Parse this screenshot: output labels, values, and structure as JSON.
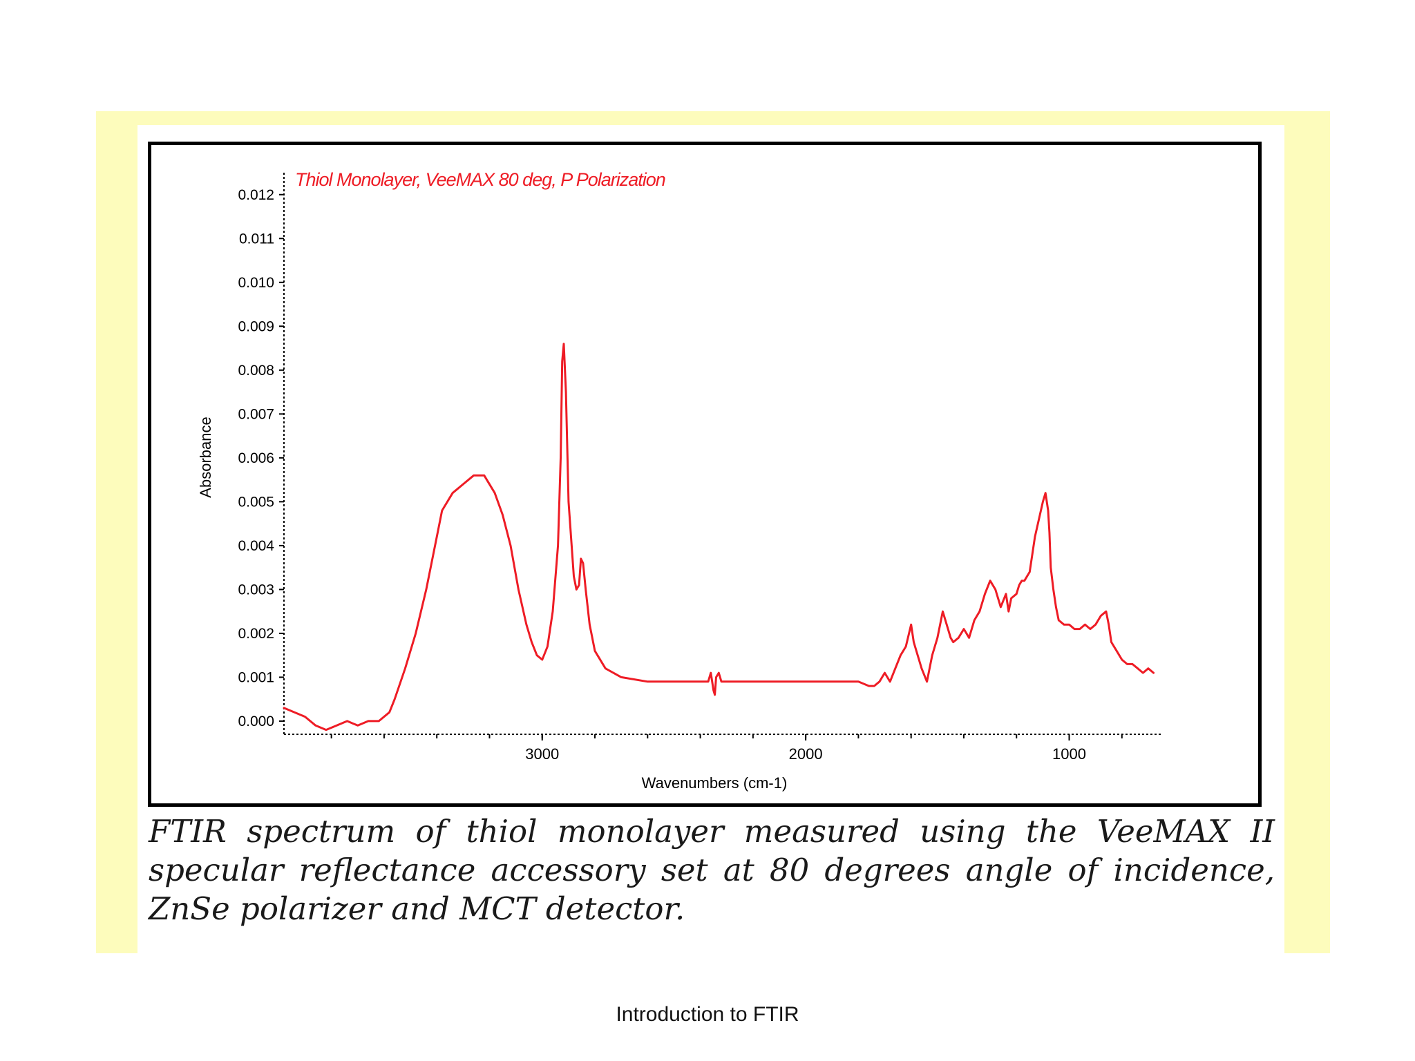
{
  "caption": "FTIR spectrum of thiol monolayer measured using the VeeMAX II specular reflectance accessory set at 80 degrees angle of incidence, ZnSe polarizer and MCT detector.",
  "footer": "Introduction to FTIR",
  "colors": {
    "frame_background": "#fdfcbc",
    "series_line": "#ee1c25",
    "chart_border": "#000000"
  },
  "chart_data": {
    "type": "line",
    "title": "Thiol Monolayer,  VeeMAX 80 deg, P Polarization",
    "xlabel": "Wavenumbers (cm-1)",
    "ylabel": "Absorbance",
    "xlim": [
      3980,
      650
    ],
    "ylim": [
      -0.0003,
      0.0125
    ],
    "x_reversed": true,
    "grid": false,
    "xticks": [
      3000,
      2000,
      1000
    ],
    "xtick_labels": [
      "3000",
      "2000",
      "1000"
    ],
    "yticks": [
      0.0,
      0.001,
      0.002,
      0.003,
      0.004,
      0.005,
      0.006,
      0.007,
      0.008,
      0.009,
      0.01,
      0.011,
      0.012
    ],
    "ytick_labels": [
      "0.000",
      "0.001",
      "0.002",
      "0.003",
      "0.004",
      "0.005",
      "0.006",
      "0.007",
      "0.008",
      "0.009",
      "0.010",
      "0.011",
      "0.012"
    ],
    "series": [
      {
        "x": [
          3980,
          3900,
          3860,
          3820,
          3780,
          3740,
          3700,
          3660,
          3620,
          3580,
          3560,
          3520,
          3480,
          3440,
          3400,
          3380,
          3340,
          3300,
          3260,
          3240,
          3220,
          3180,
          3150,
          3120,
          3090,
          3060,
          3040,
          3020,
          3000,
          2980,
          2960,
          2940,
          2930,
          2924,
          2918,
          2910,
          2900,
          2880,
          2870,
          2860,
          2853,
          2845,
          2835,
          2820,
          2800,
          2760,
          2700,
          2600,
          2500,
          2400,
          2370,
          2360,
          2350,
          2345,
          2340,
          2330,
          2320,
          2300,
          2200,
          2100,
          2000,
          1900,
          1800,
          1760,
          1740,
          1720,
          1700,
          1680,
          1660,
          1640,
          1620,
          1600,
          1590,
          1580,
          1560,
          1540,
          1520,
          1500,
          1480,
          1460,
          1450,
          1440,
          1420,
          1400,
          1380,
          1360,
          1340,
          1320,
          1300,
          1280,
          1260,
          1240,
          1230,
          1220,
          1200,
          1190,
          1180,
          1170,
          1150,
          1130,
          1100,
          1090,
          1080,
          1075,
          1070,
          1060,
          1050,
          1040,
          1020,
          1000,
          980,
          960,
          940,
          920,
          900,
          880,
          860,
          850,
          840,
          820,
          800,
          780,
          760,
          740,
          720,
          700,
          680
        ],
        "y": [
          0.0003,
          0.0001,
          -0.0001,
          -0.0002,
          -0.0001,
          0.0,
          -0.0001,
          0.0,
          0.0,
          0.0002,
          0.0005,
          0.0012,
          0.002,
          0.003,
          0.0042,
          0.0048,
          0.0052,
          0.0054,
          0.0056,
          0.0056,
          0.0056,
          0.0052,
          0.0047,
          0.004,
          0.003,
          0.0022,
          0.0018,
          0.0015,
          0.0014,
          0.0017,
          0.0025,
          0.004,
          0.006,
          0.0082,
          0.0086,
          0.0075,
          0.005,
          0.0033,
          0.003,
          0.0031,
          0.0037,
          0.0036,
          0.003,
          0.0022,
          0.0016,
          0.0012,
          0.001,
          0.0009,
          0.0009,
          0.0009,
          0.0009,
          0.0011,
          0.0007,
          0.0006,
          0.001,
          0.0011,
          0.0009,
          0.0009,
          0.0009,
          0.0009,
          0.0009,
          0.0009,
          0.0009,
          0.0008,
          0.0008,
          0.0009,
          0.0011,
          0.0009,
          0.0012,
          0.0015,
          0.0017,
          0.0022,
          0.0018,
          0.0016,
          0.0012,
          0.0009,
          0.0015,
          0.0019,
          0.0025,
          0.0021,
          0.0019,
          0.0018,
          0.0019,
          0.0021,
          0.0019,
          0.0023,
          0.0025,
          0.0029,
          0.0032,
          0.003,
          0.0026,
          0.0029,
          0.0025,
          0.0028,
          0.0029,
          0.0031,
          0.0032,
          0.0032,
          0.0034,
          0.0042,
          0.005,
          0.0052,
          0.0048,
          0.0043,
          0.0035,
          0.003,
          0.0026,
          0.0023,
          0.0022,
          0.0022,
          0.0021,
          0.0021,
          0.0022,
          0.0021,
          0.0022,
          0.0024,
          0.0025,
          0.0022,
          0.0018,
          0.0016,
          0.0014,
          0.0013,
          0.0013,
          0.0012,
          0.0011,
          0.0012,
          0.0011
        ]
      }
    ]
  }
}
